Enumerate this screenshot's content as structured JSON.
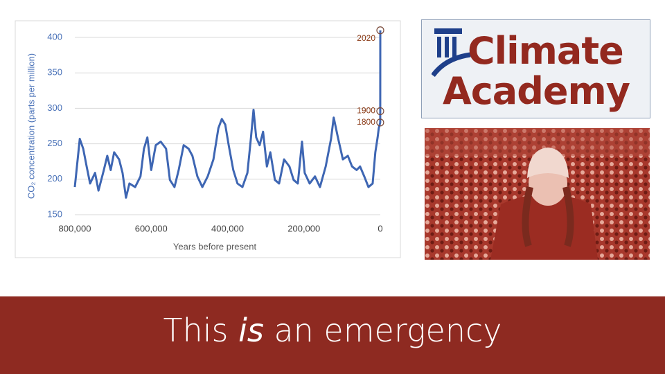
{
  "chart_data": {
    "type": "line",
    "ylabel": "CO₂ concentration (parts per million)",
    "xlabel": "Years before present",
    "color": "#3e66b3",
    "x": [
      800000,
      787000,
      778000,
      769000,
      760000,
      747000,
      738000,
      724000,
      715000,
      706000,
      697000,
      684000,
      675000,
      666000,
      657000,
      642000,
      628000,
      619000,
      610000,
      600000,
      588000,
      575000,
      561000,
      551000,
      539000,
      528000,
      515000,
      502000,
      492000,
      479000,
      466000,
      452000,
      437000,
      424000,
      415000,
      406000,
      397000,
      385000,
      374000,
      361000,
      348000,
      339000,
      332000,
      325000,
      316000,
      307000,
      297000,
      288000,
      276000,
      265000,
      252000,
      238000,
      227000,
      216000,
      205000,
      198000,
      185000,
      171000,
      158000,
      143000,
      129000,
      122000,
      111000,
      98000,
      85000,
      74000,
      62000,
      53000,
      42000,
      31000,
      20000,
      13000,
      7000,
      4000,
      220,
      120,
      0
    ],
    "values": [
      189,
      257,
      243,
      218,
      194,
      209,
      184,
      213,
      233,
      213,
      238,
      228,
      209,
      174,
      194,
      189,
      204,
      243,
      259,
      213,
      248,
      253,
      243,
      199,
      189,
      213,
      248,
      243,
      233,
      204,
      189,
      204,
      228,
      272,
      285,
      277,
      248,
      213,
      194,
      189,
      209,
      257,
      298,
      259,
      248,
      267,
      218,
      238,
      199,
      194,
      228,
      218,
      199,
      194,
      253,
      209,
      194,
      204,
      189,
      218,
      257,
      287,
      259,
      228,
      233,
      218,
      213,
      218,
      204,
      189,
      194,
      238,
      259,
      272,
      280,
      296,
      410
    ],
    "xlim": [
      800000,
      0
    ],
    "xticks": [
      {
        "value": 800000,
        "label": "800,000"
      },
      {
        "value": 600000,
        "label": "600,000"
      },
      {
        "value": 400000,
        "label": "400,000"
      },
      {
        "value": 200000,
        "label": "200,000"
      },
      0
    ],
    "ylim": [
      150,
      400
    ],
    "yticks": [
      150,
      200,
      250,
      300,
      350,
      400
    ],
    "grid": true,
    "annotations": [
      {
        "label": "2020",
        "x": 0,
        "y": 410
      },
      {
        "label": "1900",
        "x": 120,
        "y": 296
      },
      {
        "label": "1800",
        "x": 220,
        "y": 280
      }
    ]
  },
  "logo": {
    "line1": "Climate",
    "line2": "Academy"
  },
  "slide": {
    "title_before": "This",
    "title_emphasis": "is",
    "title_after": "an emergency"
  }
}
